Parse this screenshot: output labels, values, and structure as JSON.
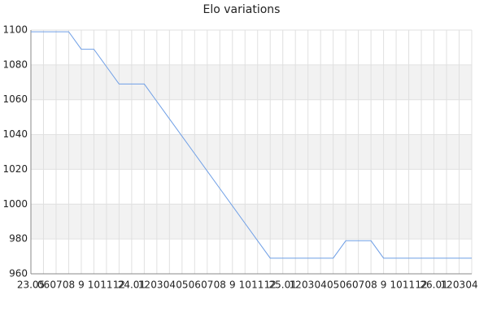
{
  "chart_data": {
    "type": "line",
    "title": "Elo variations",
    "categories": [
      "23.05",
      "06",
      "07",
      "08",
      "9",
      "10",
      "11",
      "12",
      "24.01",
      "12",
      "03",
      "04",
      "05",
      "06",
      "07",
      "08",
      "9",
      "10",
      "11",
      "12",
      "25.01",
      "12",
      "03",
      "04",
      "05",
      "06",
      "07",
      "08",
      "9",
      "10",
      "11",
      "12",
      "26.01",
      "12",
      "03",
      "04"
    ],
    "series": [
      {
        "color": "#6f9fe6",
        "values": [
          1099,
          1099,
          1099,
          1099,
          1089,
          1089,
          1079,
          1069,
          1069,
          1069,
          1059,
          1049,
          1039,
          1029,
          1019,
          1009,
          999,
          989,
          979,
          969,
          969,
          969,
          969,
          969,
          969,
          979,
          979,
          979,
          969,
          969,
          969,
          969,
          969,
          969,
          969,
          969
        ]
      }
    ],
    "ylim": [
      960,
      1100
    ],
    "yticks": [
      960,
      980,
      1000,
      1020,
      1040,
      1060,
      1080,
      1100
    ],
    "grid": true
  }
}
